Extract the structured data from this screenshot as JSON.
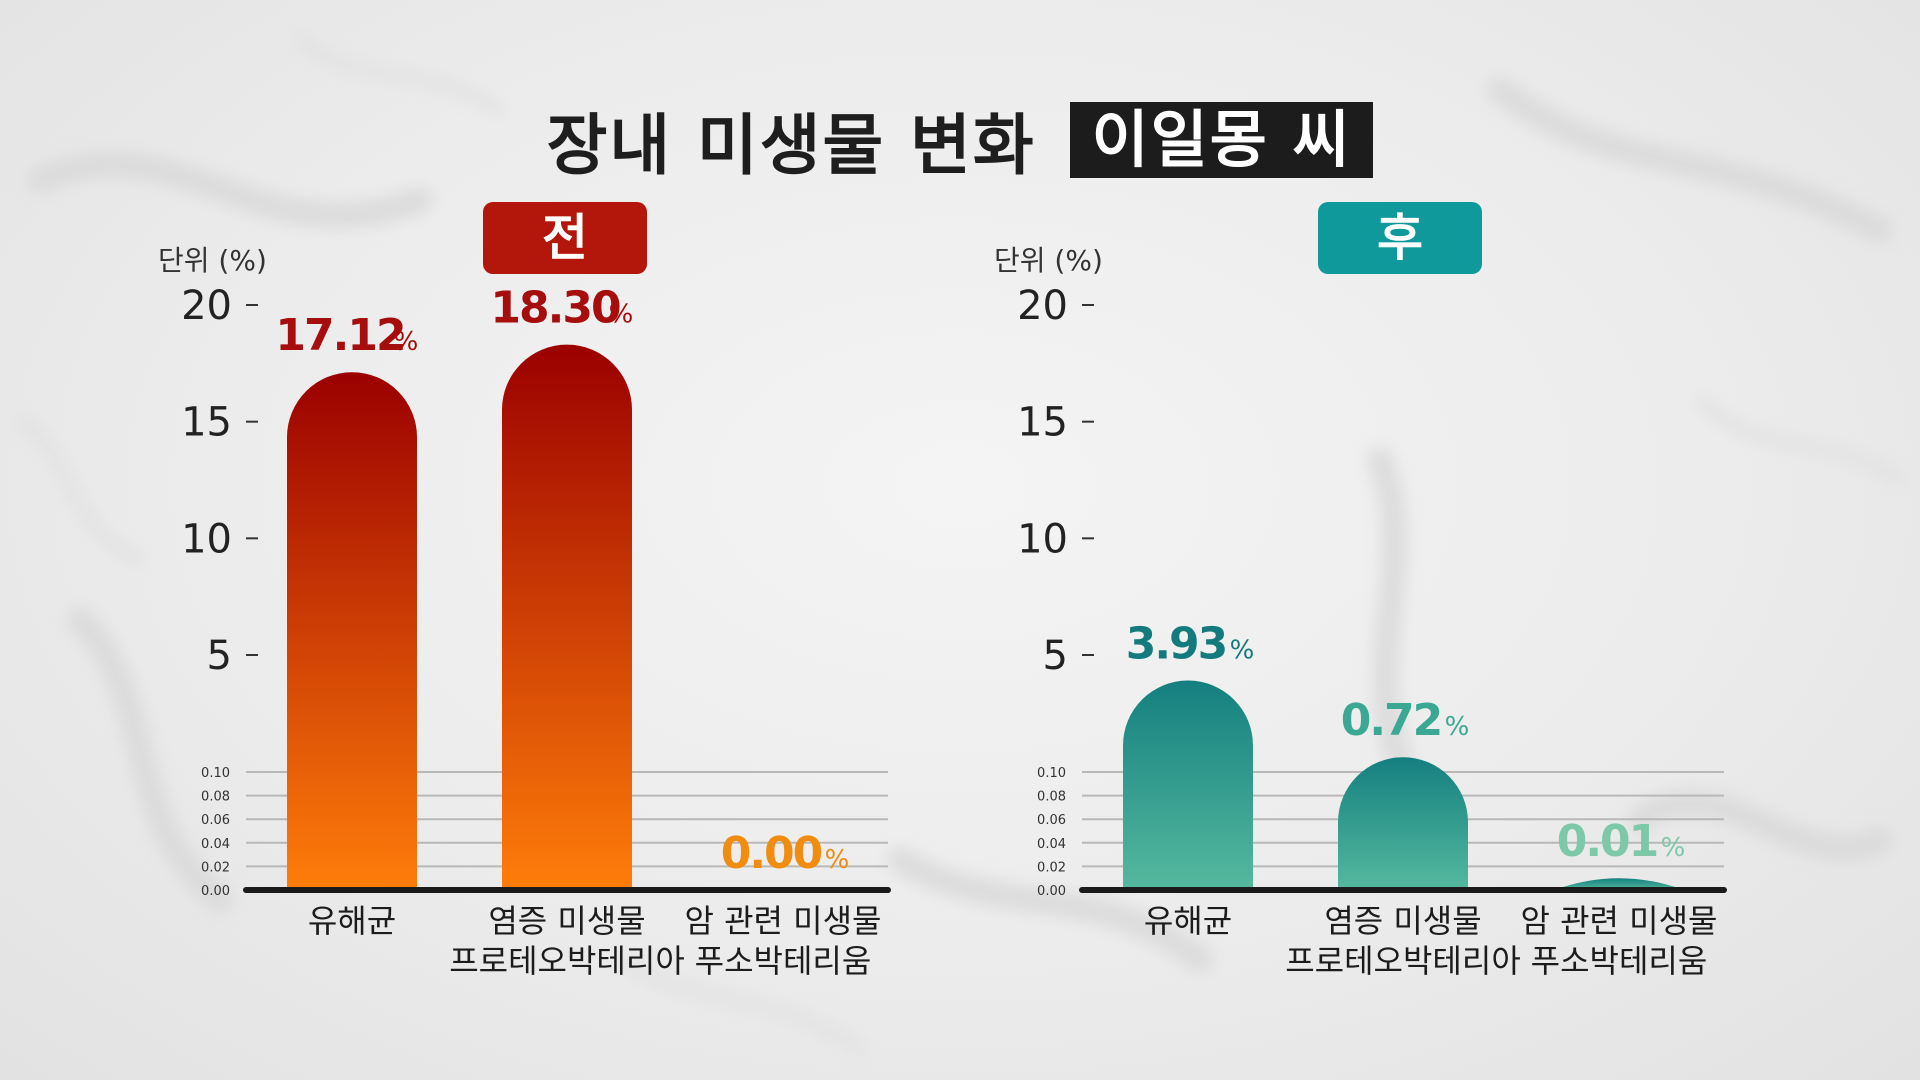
{
  "title": "장내 미생물 변화",
  "subject": "이일몽 씨",
  "colors": {
    "before_top": "#9b0000",
    "before_bottom": "#ff7d0a",
    "before_label": "#a60d0d",
    "before_zero_label": "#f08c10",
    "after_top": "#147f7f",
    "after_bottom": "#55b99e",
    "after_label": "#137b7d",
    "after_label_light": "#3aa893",
    "after_label_lighter": "#7cc8a8"
  },
  "chart_data": [
    {
      "type": "bar",
      "title": "전",
      "ylabel": "단위 (%)",
      "categories": [
        "유해균",
        "염증 미생물\n프로테오박테리아",
        "암 관련 미생물\n푸소박테리움"
      ],
      "series": [
        {
          "values": [
            17.12,
            18.3,
            0.0
          ]
        }
      ],
      "data_labels": [
        "17.12",
        "18.30",
        "0.00"
      ],
      "unit": "%",
      "y_ticks_upper": [
        "5",
        "10",
        "15",
        "20"
      ],
      "y_ticks_lower": [
        "0.00",
        "0.02",
        "0.04",
        "0.06",
        "0.08",
        "0.10"
      ],
      "ylim": [
        0,
        20
      ],
      "grid": true
    },
    {
      "type": "bar",
      "title": "후",
      "ylabel": "단위 (%)",
      "categories": [
        "유해균",
        "염증 미생물\n프로테오박테리아",
        "암 관련 미생물\n푸소박테리움"
      ],
      "series": [
        {
          "values": [
            3.93,
            0.72,
            0.01
          ]
        }
      ],
      "data_labels": [
        "3.93",
        "0.72",
        "0.01"
      ],
      "unit": "%",
      "y_ticks_upper": [
        "5",
        "10",
        "15",
        "20"
      ],
      "y_ticks_lower": [
        "0.00",
        "0.02",
        "0.04",
        "0.06",
        "0.08",
        "0.10"
      ],
      "ylim": [
        0,
        20
      ],
      "grid": true
    }
  ]
}
